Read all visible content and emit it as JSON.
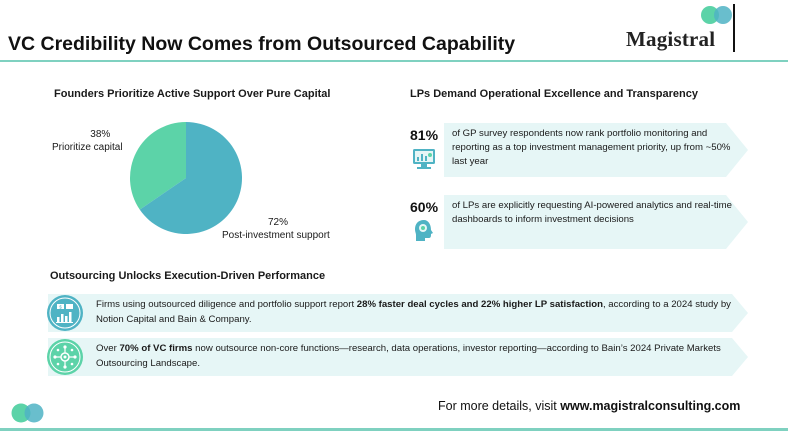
{
  "header": {
    "title": "VC Credibility Now Comes from Outsourced Capability",
    "logo_text": "Magistral"
  },
  "left_section": {
    "heading": "Founders Prioritize Active Support Over Pure Capital",
    "pie_label_a_value": "38%",
    "pie_label_a_text": "Prioritize capital",
    "pie_label_b_value": "72%",
    "pie_label_b_text": "Post-investment support"
  },
  "right_section": {
    "heading": "LPs Demand Operational Excellence and Transparency",
    "stats": [
      {
        "value": "81%",
        "text": "of GP survey respondents now rank portfolio monitoring and reporting as a top investment management priority, up from ~50% last year"
      },
      {
        "value": "60%",
        "text": "of LPs are explicitly requesting AI-powered analytics and real-time dashboards to inform investment decisions"
      }
    ]
  },
  "bottom_section": {
    "heading": "Outsourcing Unlocks Execution-Driven Performance",
    "items": [
      {
        "pre": "Firms using outsourced diligence and portfolio support report ",
        "bold": "28% faster deal cycles and 22% higher LP satisfaction",
        "post": ", according to a 2024 study by Notion Capital and Bain & Company."
      },
      {
        "pre": "Over ",
        "bold": "70% of VC firms",
        "post": " now outsource non-core functions—research, data operations, investor reporting—according to Bain’s 2024 Private Markets Outsourcing Landscape."
      }
    ]
  },
  "footer": {
    "prefix": "For more details, visit ",
    "url": "www.magistralconsulting.com"
  },
  "colors": {
    "teal": "#4fb3c4",
    "mint": "#5cd3a8",
    "band": "#e6f6f6"
  },
  "chart_data": {
    "type": "pie",
    "title": "Founders Prioritize Active Support Over Pure Capital",
    "slices": [
      {
        "label": "Prioritize capital",
        "value": 38,
        "color": "#5cd3a8"
      },
      {
        "label": "Post-investment support",
        "value": 72,
        "color": "#4fb3c4"
      }
    ]
  }
}
